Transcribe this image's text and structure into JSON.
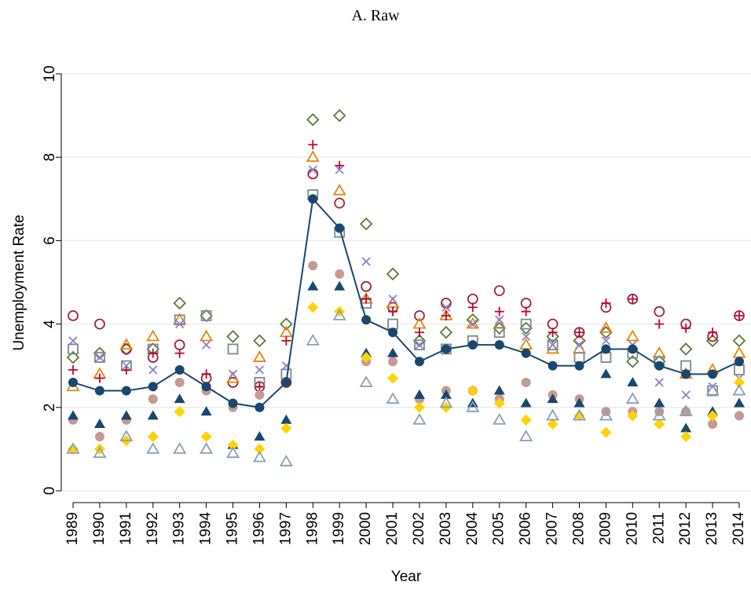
{
  "chart_data": {
    "type": "scatter",
    "title": "A. Raw",
    "x_label": "Year",
    "y_label": "Unemployment Rate",
    "x": [
      1989,
      1990,
      1991,
      1992,
      1993,
      1994,
      1995,
      1996,
      1997,
      1998,
      1999,
      2000,
      2001,
      2002,
      2003,
      2004,
      2005,
      2006,
      2007,
      2008,
      2009,
      2010,
      2011,
      2012,
      2013,
      2014
    ],
    "xlim": [
      1989,
      2014
    ],
    "ylim": [
      0,
      10
    ],
    "yticks": [
      0,
      2,
      4,
      6,
      8,
      10
    ],
    "grid": true,
    "series": [
      {
        "marker": "diamond-hollow",
        "color": "#5a7a3a",
        "values": [
          3.2,
          3.3,
          3.4,
          3.4,
          4.5,
          4.2,
          3.7,
          3.6,
          4.0,
          8.9,
          9.0,
          6.4,
          5.2,
          3.6,
          3.8,
          4.1,
          3.9,
          3.9,
          3.7,
          3.6,
          3.8,
          3.1,
          3.1,
          3.4,
          3.6,
          3.6
        ]
      },
      {
        "marker": "circle-hollow",
        "color": "#a0263a",
        "values": [
          4.2,
          4.0,
          3.4,
          3.2,
          3.5,
          2.7,
          2.6,
          2.5,
          2.6,
          7.6,
          6.9,
          4.9,
          4.4,
          4.2,
          4.5,
          4.6,
          4.8,
          4.5,
          4.0,
          3.8,
          4.4,
          4.6,
          4.3,
          4.0,
          3.7,
          4.2
        ]
      },
      {
        "marker": "triangle-hollow",
        "color": "#e8860c",
        "values": [
          2.5,
          2.8,
          3.5,
          3.7,
          4.1,
          3.7,
          2.7,
          3.2,
          3.8,
          8.0,
          7.2,
          4.6,
          4.5,
          4.0,
          4.2,
          4.0,
          4.0,
          3.5,
          3.4,
          3.4,
          3.9,
          3.7,
          3.3,
          2.8,
          2.9,
          3.3
        ]
      },
      {
        "marker": "square-hollow",
        "color": "#7a8b8b",
        "values": [
          3.4,
          3.2,
          3.0,
          3.4,
          4.1,
          4.2,
          3.4,
          2.6,
          2.8,
          7.1,
          6.2,
          4.5,
          4.0,
          3.5,
          3.4,
          3.6,
          3.8,
          4.0,
          3.5,
          3.2,
          3.2,
          3.3,
          3.1,
          3.0,
          2.4,
          2.9
        ]
      },
      {
        "marker": "plus",
        "color": "#c10534",
        "values": [
          2.9,
          2.7,
          2.9,
          3.3,
          3.3,
          2.8,
          2.1,
          2.5,
          3.6,
          8.3,
          7.8,
          4.6,
          4.3,
          3.8,
          4.2,
          4.4,
          4.3,
          4.3,
          3.8,
          3.8,
          4.5,
          4.6,
          4.0,
          3.9,
          3.8,
          4.2
        ]
      },
      {
        "marker": "x",
        "color": "#9080d0",
        "values": [
          3.6,
          3.2,
          3.0,
          2.9,
          4.0,
          3.5,
          2.8,
          2.9,
          3.0,
          7.7,
          7.7,
          5.5,
          4.6,
          3.5,
          4.4,
          4.0,
          4.1,
          3.7,
          3.5,
          3.5,
          3.6,
          3.5,
          2.6,
          2.3,
          2.5,
          2.7
        ]
      },
      {
        "marker": "circle",
        "color": "#c49a94",
        "values": [
          1.7,
          1.3,
          1.7,
          2.2,
          2.6,
          2.4,
          2.0,
          2.3,
          2.6,
          5.4,
          5.2,
          3.1,
          3.1,
          2.2,
          2.4,
          2.4,
          2.2,
          2.6,
          2.3,
          2.2,
          1.9,
          1.9,
          1.9,
          1.9,
          1.6,
          1.8
        ]
      },
      {
        "marker": "triangle",
        "color": "#1a476f",
        "values": [
          1.8,
          1.6,
          1.8,
          1.8,
          2.2,
          1.9,
          1.1,
          1.3,
          1.7,
          4.9,
          4.9,
          3.3,
          3.3,
          2.3,
          2.3,
          2.1,
          2.4,
          2.1,
          2.2,
          2.1,
          2.8,
          2.6,
          2.1,
          1.5,
          1.9,
          2.1
        ]
      },
      {
        "marker": "diamond",
        "color": "#ffd200",
        "values": [
          1.0,
          1.0,
          1.2,
          1.3,
          1.9,
          1.3,
          1.1,
          1.0,
          1.5,
          4.4,
          4.3,
          3.2,
          2.7,
          2.0,
          2.0,
          2.4,
          2.1,
          1.7,
          1.6,
          1.8,
          1.4,
          1.8,
          1.6,
          1.3,
          1.8,
          2.6
        ]
      },
      {
        "marker": "triangle-hollow",
        "color": "#8a9fb5",
        "values": [
          1.0,
          0.9,
          1.3,
          1.0,
          1.0,
          1.0,
          0.9,
          0.8,
          0.7,
          3.6,
          4.2,
          2.6,
          2.2,
          1.7,
          2.1,
          2.0,
          1.7,
          1.3,
          1.8,
          1.8,
          1.8,
          2.2,
          1.8,
          1.9,
          2.4,
          2.4
        ]
      },
      {
        "marker": "circle",
        "line": true,
        "color": "#1a476f",
        "values": [
          2.6,
          2.4,
          2.4,
          2.5,
          2.9,
          2.5,
          2.1,
          2.0,
          2.6,
          7.0,
          6.3,
          4.1,
          3.8,
          3.1,
          3.4,
          3.5,
          3.5,
          3.3,
          3.0,
          3.0,
          3.4,
          3.4,
          3.0,
          2.8,
          2.8,
          3.1
        ]
      }
    ]
  }
}
